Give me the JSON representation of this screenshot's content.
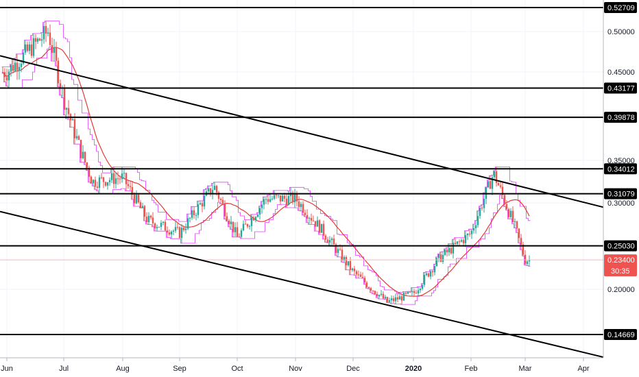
{
  "chart_data": {
    "type": "candlestick",
    "title": "",
    "xlabel": "",
    "ylabel": "",
    "y_axis_position": "right",
    "x_ticks": [
      "Jun",
      "Jul",
      "Aug",
      "Sep",
      "Oct",
      "Nov",
      "Dec",
      "2020",
      "Feb",
      "Mar",
      "Apr"
    ],
    "y_ticks": [
      "0.50000",
      "0.45000",
      "0.35000",
      "0.30000",
      "0.20000"
    ],
    "horizontal_levels": [
      {
        "value": 0.52709,
        "label": "0.52709"
      },
      {
        "value": 0.43177,
        "label": "0.43177"
      },
      {
        "value": 0.39878,
        "label": "0.39878"
      },
      {
        "value": 0.34012,
        "label": "0.34012"
      },
      {
        "value": 0.31079,
        "label": "0.31079"
      },
      {
        "value": 0.2503,
        "label": "0.25030"
      },
      {
        "value": 0.14669,
        "label": "0.14669"
      }
    ],
    "current_price": {
      "value": 0.234,
      "label": "0.23400",
      "countdown": "30:35",
      "color": "#ef5350"
    },
    "trendlines": [
      {
        "from": [
          "Jun",
          0.47
        ],
        "to": [
          "Apr",
          0.295
        ]
      },
      {
        "from": [
          "Jun",
          0.29
        ],
        "to": [
          "Apr",
          0.12
        ]
      }
    ],
    "moving_average_color": "#e53935",
    "channel_color": "#e040fb",
    "up_color": "#26a69a",
    "down_color": "#ef5350",
    "key_points": [
      {
        "date": "Jun",
        "price": 0.45
      },
      {
        "date": "Late Jun",
        "price": 0.5
      },
      {
        "date": "Jul",
        "price": 0.42
      },
      {
        "date": "Mid Jul",
        "price": 0.36
      },
      {
        "date": "Late Jul",
        "price": 0.325
      },
      {
        "date": "Aug",
        "price": 0.33
      },
      {
        "date": "Mid Aug",
        "price": 0.28
      },
      {
        "date": "Sep",
        "price": 0.265
      },
      {
        "date": "Late Sep",
        "price": 0.32
      },
      {
        "date": "Oct",
        "price": 0.26
      },
      {
        "date": "Mid Oct",
        "price": 0.305
      },
      {
        "date": "Nov",
        "price": 0.305
      },
      {
        "date": "Mid Nov",
        "price": 0.27
      },
      {
        "date": "Dec",
        "price": 0.22
      },
      {
        "date": "Late Dec",
        "price": 0.185
      },
      {
        "date": "2020",
        "price": 0.195
      },
      {
        "date": "Mid Jan",
        "price": 0.235
      },
      {
        "date": "Feb",
        "price": 0.265
      },
      {
        "date": "Mid Feb",
        "price": 0.335
      },
      {
        "date": "Late Feb",
        "price": 0.27
      },
      {
        "date": "Mar",
        "price": 0.234
      }
    ]
  }
}
